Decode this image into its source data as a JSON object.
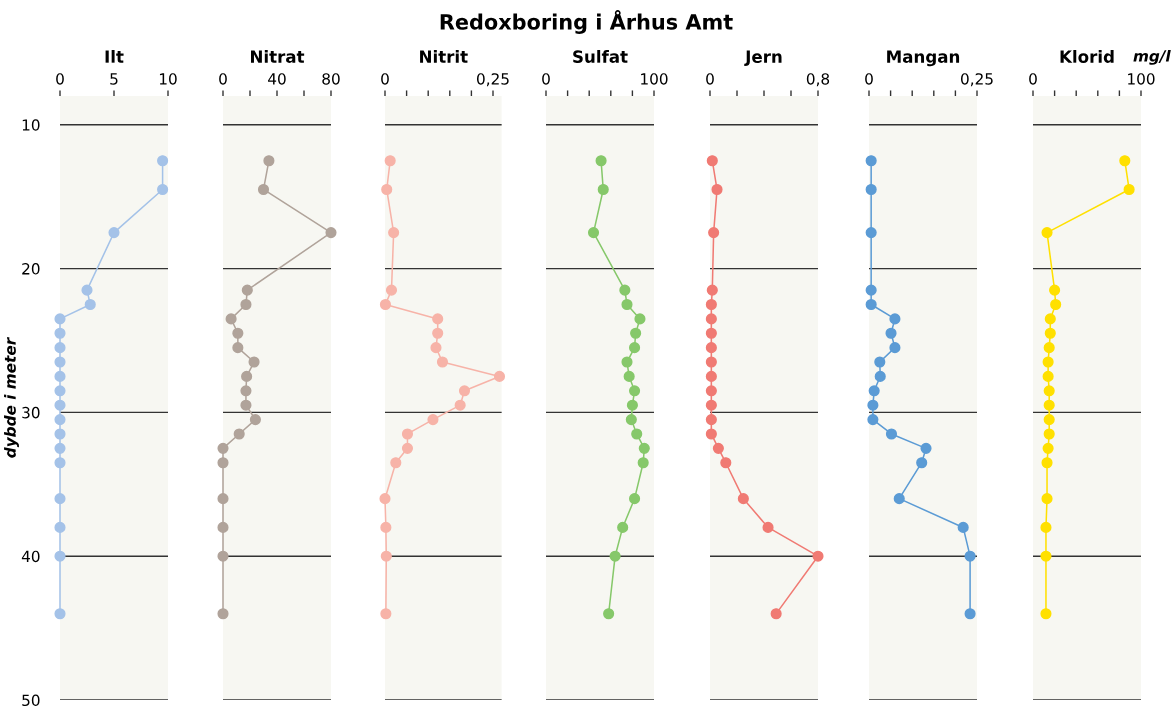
{
  "chart_data": [
    {
      "type": "line",
      "title": "Ilt",
      "ylabel": "dybde i meter",
      "annotations": [
        "Redoxboring i Århus Amt"
      ],
      "marker": "circle",
      "grid": "y",
      "xlim": [
        0,
        10
      ],
      "xticks": [
        0,
        5,
        10
      ],
      "ylim": [
        50,
        8
      ],
      "yticks": [
        10,
        20,
        30,
        40,
        50
      ],
      "series": [
        {
          "color": "#a4c2e8",
          "x": [
            9.5,
            9.5,
            5,
            2.5,
            2.8,
            0,
            0,
            0,
            0,
            0,
            0,
            0,
            0,
            0,
            0,
            0,
            0,
            0,
            0,
            0
          ],
          "values": [
            12.5,
            14.5,
            17.5,
            21.5,
            22.5,
            23.5,
            24.5,
            25.5,
            26.5,
            27.5,
            28.5,
            29.5,
            30.5,
            31.5,
            32.5,
            33.5,
            36,
            38,
            40,
            44
          ]
        }
      ]
    },
    {
      "type": "line",
      "title": "Nitrat",
      "marker": "circle",
      "grid": "y",
      "tick_labels": "x",
      "xlim": [
        0,
        80
      ],
      "xticks": [
        0,
        {
          "value": 20,
          "label": null
        },
        40,
        {
          "value": 60,
          "label": null
        },
        80
      ],
      "ylim": [
        50,
        8
      ],
      "yticks": [
        10,
        20,
        30,
        40,
        50
      ],
      "series": [
        {
          "color": "#b0a39a",
          "x": [
            34,
            30,
            80,
            18,
            17,
            6,
            11,
            11,
            23,
            17.5,
            17,
            17,
            24,
            12,
            0,
            0,
            0,
            0,
            0,
            0
          ],
          "values": [
            12.5,
            14.5,
            17.5,
            21.5,
            22.5,
            23.5,
            24.5,
            25.5,
            26.5,
            27.5,
            28.5,
            29.5,
            30.5,
            31.5,
            32.5,
            33.5,
            36,
            38,
            40,
            44
          ]
        }
      ]
    },
    {
      "type": "line",
      "title": "Nitrit",
      "marker": "circle",
      "grid": "y",
      "tick_labels": "x",
      "xlim": [
        0,
        0.27
      ],
      "xticks": [
        0,
        {
          "value": 0.05,
          "label": null
        },
        {
          "value": 0.1,
          "label": null
        },
        {
          "value": 0.15,
          "label": null
        },
        {
          "value": 0.2,
          "label": null
        },
        {
          "value": 0.25,
          "label": "0,25"
        }
      ],
      "ylim": [
        50,
        8
      ],
      "yticks": [
        10,
        20,
        30,
        40,
        50
      ],
      "series": [
        {
          "color": "#f7b3a8",
          "x": [
            0.012,
            0.004,
            0.02,
            0.015,
            0.001,
            0.122,
            0.122,
            0.118,
            0.133,
            0.265,
            0.184,
            0.174,
            0.111,
            0.052,
            0.052,
            0.025,
            0,
            0.002,
            0.003,
            0.002
          ],
          "values": [
            12.5,
            14.5,
            17.5,
            21.5,
            22.5,
            23.5,
            24.5,
            25.5,
            26.5,
            27.5,
            28.5,
            29.5,
            30.5,
            31.5,
            32.5,
            33.5,
            36,
            38,
            40,
            44
          ]
        }
      ]
    },
    {
      "type": "line",
      "title": "Sulfat",
      "marker": "circle",
      "grid": "y",
      "tick_labels": "x",
      "xlim": [
        0,
        100
      ],
      "xticks": [
        0,
        {
          "value": 20,
          "label": null
        },
        {
          "value": 40,
          "label": null
        },
        {
          "value": 60,
          "label": null
        },
        {
          "value": 80,
          "label": null
        },
        100
      ],
      "ylim": [
        50,
        8
      ],
      "yticks": [
        10,
        20,
        30,
        40,
        50
      ],
      "series": [
        {
          "color": "#86c86a",
          "x": [
            51,
            53,
            44,
            73,
            75,
            87,
            83,
            82,
            75,
            77,
            82,
            80,
            79,
            84,
            91,
            90,
            82,
            71,
            64,
            58
          ],
          "values": [
            12.5,
            14.5,
            17.5,
            21.5,
            22.5,
            23.5,
            24.5,
            25.5,
            26.5,
            27.5,
            28.5,
            29.5,
            30.5,
            31.5,
            32.5,
            33.5,
            36,
            38,
            40,
            44
          ]
        }
      ]
    },
    {
      "type": "line",
      "title": "Jern",
      "marker": "circle",
      "grid": "y",
      "tick_labels": "x",
      "xlim": [
        0,
        0.8
      ],
      "xticks": [
        0,
        {
          "value": 0.2,
          "label": null
        },
        {
          "value": 0.4,
          "label": null
        },
        {
          "value": 0.6,
          "label": null
        },
        {
          "value": 0.8,
          "label": "0,8"
        }
      ],
      "ylim": [
        50,
        8
      ],
      "yticks": [
        10,
        20,
        30,
        40,
        50
      ],
      "series": [
        {
          "color": "#f07a73",
          "x": [
            0.017,
            0.052,
            0.027,
            0.017,
            0.01,
            0.01,
            0.01,
            0.01,
            0.01,
            0.01,
            0.01,
            0.01,
            0.01,
            0.01,
            0.062,
            0.117,
            0.247,
            0.43,
            0.8,
            0.49
          ],
          "values": [
            12.5,
            14.5,
            17.5,
            21.5,
            22.5,
            23.5,
            24.5,
            25.5,
            26.5,
            27.5,
            28.5,
            29.5,
            30.5,
            31.5,
            32.5,
            33.5,
            36,
            38,
            40,
            44
          ]
        }
      ]
    },
    {
      "type": "line",
      "title": "Mangan",
      "marker": "circle",
      "grid": "y",
      "tick_labels": "x",
      "xlim": [
        0,
        0.25
      ],
      "xticks": [
        0,
        {
          "value": 0.05,
          "label": null
        },
        {
          "value": 0.1,
          "label": null
        },
        {
          "value": 0.15,
          "label": null
        },
        {
          "value": 0.2,
          "label": null
        },
        {
          "value": 0.25,
          "label": "0,25"
        }
      ],
      "ylim": [
        50,
        8
      ],
      "yticks": [
        10,
        20,
        30,
        40,
        50
      ],
      "series": [
        {
          "color": "#5b9bd5",
          "x": [
            0.005,
            0.005,
            0.005,
            0.005,
            0.005,
            0.06,
            0.051,
            0.06,
            0.025,
            0.026,
            0.012,
            0.009,
            0.009,
            0.052,
            0.132,
            0.122,
            0.07,
            0.218,
            0.234,
            0.234
          ],
          "values": [
            12.5,
            14.5,
            17.5,
            21.5,
            22.5,
            23.5,
            24.5,
            25.5,
            26.5,
            27.5,
            28.5,
            29.5,
            30.5,
            31.5,
            32.5,
            33.5,
            36,
            38,
            40,
            44
          ]
        }
      ]
    },
    {
      "type": "line",
      "title": "Klorid",
      "xlabel": "mg/l",
      "marker": "circle",
      "grid": "y",
      "tick_labels": "x",
      "xlim": [
        0,
        100
      ],
      "xticks": [
        0,
        {
          "value": 20,
          "label": null
        },
        {
          "value": 40,
          "label": null
        },
        {
          "value": 60,
          "label": null
        },
        {
          "value": 80,
          "label": null
        },
        100
      ],
      "ylim": [
        50,
        8
      ],
      "yticks": [
        10,
        20,
        30,
        40,
        50
      ],
      "series": [
        {
          "color": "#ffe000",
          "x": [
            85,
            89,
            13,
            20,
            21,
            16,
            16,
            15,
            14,
            14,
            15,
            15,
            15,
            15,
            14,
            13,
            13,
            12,
            12,
            12
          ],
          "values": [
            12.5,
            14.5,
            17.5,
            21.5,
            22.5,
            23.5,
            24.5,
            25.5,
            26.5,
            27.5,
            28.5,
            29.5,
            30.5,
            31.5,
            32.5,
            33.5,
            36,
            38,
            40,
            44
          ]
        }
      ]
    }
  ]
}
